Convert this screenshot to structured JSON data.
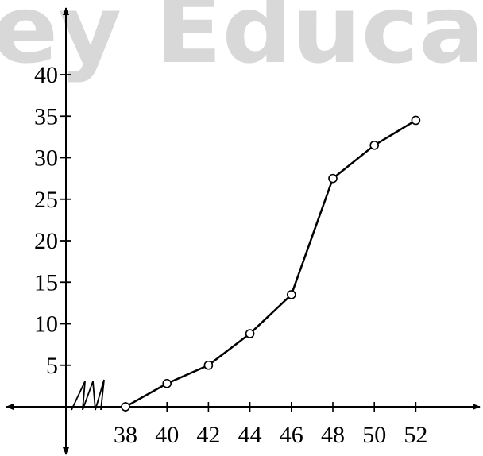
{
  "watermark": {
    "text": "ey Educa"
  },
  "chart_data": {
    "type": "line",
    "title": "",
    "xlabel": "",
    "ylabel": "",
    "x": [
      38,
      40,
      42,
      44,
      46,
      48,
      50,
      52
    ],
    "series": [
      {
        "values": [
          0,
          2.8,
          5,
          8.8,
          13.5,
          27.5,
          31.5,
          34.5
        ],
        "marker": "open-circle",
        "color": "#000000"
      }
    ],
    "x_ticks": [
      "38",
      "40",
      "42",
      "44",
      "46",
      "48",
      "50",
      "52"
    ],
    "y_ticks": [
      "5",
      "10",
      "15",
      "20",
      "25",
      "30",
      "35",
      "40"
    ],
    "y_tick_values": [
      5,
      10,
      15,
      20,
      25,
      30,
      35,
      40
    ],
    "xlim": [
      36,
      54
    ],
    "ylim": [
      0,
      40
    ],
    "x_axis_break": true,
    "grid": false,
    "legend": "none"
  }
}
